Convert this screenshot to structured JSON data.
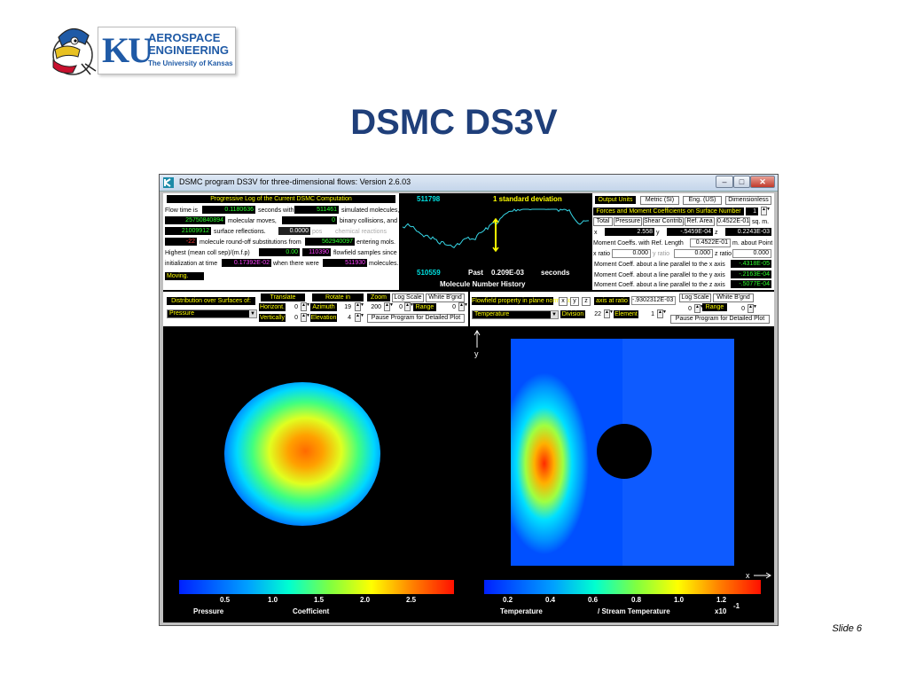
{
  "logo": {
    "mark": "KU",
    "line1": "AEROSPACE",
    "line2": "ENGINEERING",
    "line3": "The University of Kansas"
  },
  "slide": {
    "title": "DSMC DS3V",
    "number": "Slide 6"
  },
  "window": {
    "title": "DSMC program DS3V for three-dimensional flows: Version 2.6.03",
    "controls": {
      "minimize": "–",
      "maximize": "□",
      "close": "✕"
    }
  },
  "log": {
    "header": "Progressive Log of the Current DSMC Computation",
    "flow_time_label": "Flow time is",
    "flow_time": "0.1180636",
    "seconds_with": "seconds with",
    "simulated": "511461",
    "simulated_label": "simulated molecules,",
    "moves": "25750840894",
    "moves_label": "molecular moves,",
    "binary": "0",
    "binary_label": "binary collisions, and",
    "reflections": "21009912",
    "reflections_label": "surface reflections.",
    "chem": "0.0000",
    "chem_prefix": "pos",
    "chem_label": "chemical reactions",
    "roundoff": "-22",
    "roundoff_label": "molecule round-off substitutions from",
    "entering": "562940097",
    "entering_label": "entering mols.",
    "mcs_label": "Highest (mean coll sep)/(m.f.p)",
    "mcs": "0.00",
    "samples": "110390",
    "samples_label": "flowfield samples since",
    "init_label": "initialization at time",
    "init_time": "0.17392E-02",
    "when_label": "when there were",
    "init_mols": "511930",
    "mols_label": "molecules.",
    "status": "Moving."
  },
  "history": {
    "top_value": "511798",
    "std_label": "1 standard deviation",
    "bottom_value": "510559",
    "past_label": "Past",
    "past_value": "0.209E-03",
    "seconds_label": "seconds",
    "caption": "Molecule Number History",
    "trace_color": "#36d6e6",
    "bar_color": "#ffff00"
  },
  "output": {
    "units_label": "Output Units",
    "units": [
      "Metric (SI)",
      "Eng. (US)",
      "Dimensionless"
    ],
    "forces_header": "Forces and Moment Coefficients on Surface Number",
    "surface_number": "1",
    "tabs": [
      "Total",
      "Pressure",
      "Shear Contrib.",
      "Ref. Area"
    ],
    "ref_area": "0.4522E-01",
    "ref_area_unit": "sq. m.",
    "x_label": "x",
    "x_coeff": "2.558",
    "y_label": "y",
    "y_coeff": "-.5459E-04",
    "z_label": "z",
    "z_coeff": "0.2243E-03",
    "moment_label": "Moment Coeffs. with Ref. Length",
    "ref_length": "0.4522E-01",
    "about_label": "m. about Point",
    "xratio_label": "x ratio",
    "xratio": "0.000",
    "yratio_label": "y ratio",
    "yratio": "0.000",
    "zratio_label": "z ratio",
    "zratio": "0.000",
    "mx_label": "Moment Coeff. about a line parallel to the x axis",
    "mx": "-.4318E-05",
    "my_label": "Moment Coeff. about a line parallel to the y axis",
    "my": "-.2163E-04",
    "mz_label": "Moment Coeff. about a line parallel to the z axis",
    "mz": "-.5077E-04"
  },
  "left_controls": {
    "dist_label": "Distribution over Surfaces of:",
    "property": "Pressure",
    "translate": "Translate",
    "horiz": "Horizont.",
    "horiz_val": "0",
    "vert": "Vertically",
    "vert_val": "0",
    "rotate": "Rotate in",
    "azimuth": "Azimuth",
    "azimuth_val": "19",
    "elevation": "Elevation",
    "elevation_val": "4",
    "zoom": "Zoom",
    "zoom_val": "200",
    "zero_val": "0",
    "log_scale": "Log Scale",
    "white_bg": "White B'gnd",
    "range": "Range",
    "range_val": "0",
    "pause": "Pause Program for Detailed Plot"
  },
  "right_controls": {
    "flow_label": "Flowfield property in plane normal to",
    "axes": [
      "x",
      "y",
      "z"
    ],
    "axis_ratio_label": "axis at ratio",
    "axis_ratio": "-.9302312E-03",
    "property": "Temperature",
    "division": "Division",
    "division_val": "22",
    "element": "Element",
    "element_val": "1",
    "zero_val": "0",
    "log_scale": "Log Scale",
    "white_bg": "White B'gnd",
    "range": "Range",
    "range_val": "0",
    "pause": "Pause Program for Detailed Plot"
  },
  "left_plot": {
    "ticks": [
      "0.5",
      "1.0",
      "1.5",
      "2.0",
      "2.5"
    ],
    "label_a": "Pressure",
    "label_b": "Coefficient"
  },
  "right_plot": {
    "y_axis": "y",
    "x_axis": "x",
    "ticks": [
      "0.2",
      "0.4",
      "0.6",
      "0.8",
      "1.0",
      "1.2"
    ],
    "label_a": "Temperature",
    "label_b": "/ Stream Temperature",
    "scale": "x10",
    "scale_exp": "-1"
  },
  "colors": {
    "title": "#1f3f7a",
    "brand": "#1f5aa6",
    "panel_header": "#000000",
    "accent_text": "#ffff00"
  }
}
